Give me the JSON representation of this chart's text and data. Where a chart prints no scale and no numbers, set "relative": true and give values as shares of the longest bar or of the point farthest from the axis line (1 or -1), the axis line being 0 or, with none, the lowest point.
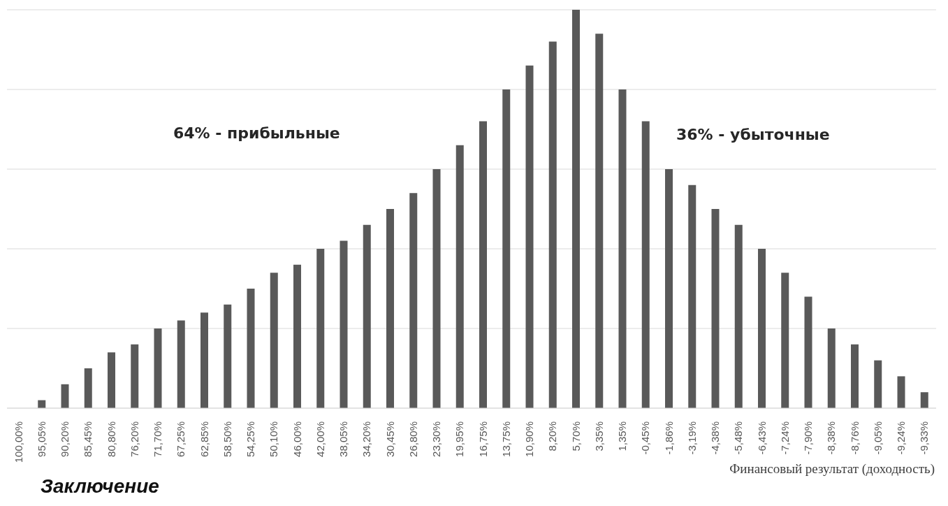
{
  "chart_data": {
    "type": "bar",
    "relative": true,
    "grid": "y",
    "color": "#595959",
    "xlabel": "Финансовый результат (доходность)",
    "annotations": [
      "64% - прибыльные",
      "36% - убыточные",
      "Заключение"
    ],
    "categories": [
      "100,00%",
      "95,05%",
      "90,20%",
      "85,45%",
      "80,80%",
      "76,20%",
      "71,70%",
      "67,25%",
      "62,85%",
      "58,50%",
      "54,25%",
      "50,10%",
      "46,00%",
      "42,00%",
      "38,05%",
      "34,20%",
      "30,45%",
      "26,80%",
      "23,30%",
      "19,95%",
      "16,75%",
      "13,75%",
      "10,90%",
      "8,20%",
      "5,70%",
      "3,35%",
      "1,35%",
      "-0,45%",
      "-1,86%",
      "-3,19%",
      "-4,38%",
      "-5,48%",
      "-6,43%",
      "-7,24%",
      "-7,90%",
      "-8,38%",
      "-8,76%",
      "-9,05%",
      "-9,24%",
      "-9,33%"
    ],
    "values": [
      0,
      0.02,
      0.06,
      0.1,
      0.14,
      0.16,
      0.2,
      0.22,
      0.24,
      0.26,
      0.3,
      0.34,
      0.36,
      0.4,
      0.42,
      0.46,
      0.5,
      0.54,
      0.6,
      0.66,
      0.72,
      0.8,
      0.86,
      0.92,
      1,
      0.94,
      0.8,
      0.72,
      0.6,
      0.56,
      0.5,
      0.46,
      0.4,
      0.34,
      0.28,
      0.2,
      0.16,
      0.12,
      0.08,
      0.04
    ]
  }
}
